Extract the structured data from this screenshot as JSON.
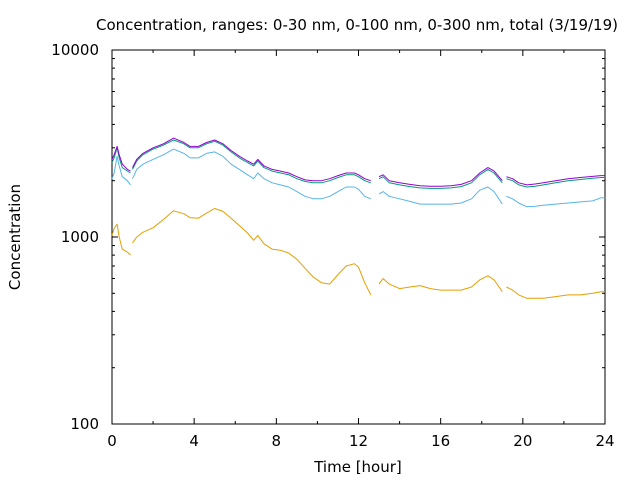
{
  "chart_data": {
    "type": "line",
    "title": "Concentration, ranges: 0-30 nm, 0-100 nm, 0-300 nm, total (3/19/19)",
    "xlabel": "Time [hour]",
    "ylabel": "Concentration",
    "xlim": [
      0,
      24
    ],
    "ylim": [
      100,
      10000
    ],
    "yscale": "log",
    "grid": false,
    "x_ticks": [
      0,
      4,
      8,
      12,
      16,
      20,
      24
    ],
    "x_tick_labels": [
      "0",
      "4",
      "8",
      "12",
      "16",
      "20",
      "24"
    ],
    "y_ticks": [
      100,
      1000,
      10000
    ],
    "y_tick_labels": [
      "100",
      "1000",
      "10000"
    ],
    "series": [
      {
        "color": "#e69f00",
        "x": [
          0,
          0.1,
          0.25,
          0.35,
          0.5,
          0.75,
          0.9,
          1.0,
          1.2,
          1.5,
          2.0,
          2.5,
          3.0,
          3.5,
          3.8,
          4.2,
          4.6,
          5.0,
          5.4,
          5.8,
          6.2,
          6.6,
          6.9,
          7.1,
          7.4,
          7.8,
          8.2,
          8.6,
          9.0,
          9.4,
          9.8,
          10.2,
          10.6,
          11.0,
          11.4,
          11.8,
          12.0,
          12.3,
          12.6,
          13.0,
          13.2,
          13.5,
          14.0,
          14.5,
          15.0,
          15.5,
          16.0,
          16.5,
          17.0,
          17.5,
          17.9,
          18.3,
          18.6,
          19.0,
          19.2,
          19.5,
          19.8,
          20.2,
          20.6,
          21.0,
          21.6,
          22.2,
          22.8,
          23.4,
          23.8,
          24.0
        ],
        "y": [
          1020,
          1110,
          1170,
          1000,
          860,
          830,
          800,
          930,
          1000,
          1060,
          1120,
          1240,
          1380,
          1330,
          1270,
          1260,
          1340,
          1420,
          1370,
          1260,
          1150,
          1050,
          960,
          1020,
          920,
          860,
          850,
          820,
          760,
          680,
          610,
          570,
          560,
          630,
          700,
          720,
          690,
          570,
          490,
          560,
          600,
          560,
          530,
          540,
          550,
          530,
          520,
          520,
          520,
          540,
          590,
          620,
          590,
          510,
          540,
          520,
          490,
          470,
          470,
          470,
          480,
          490,
          490,
          500,
          510,
          510
        ]
      },
      {
        "color": "#56b4e9",
        "x": [
          0,
          0.1,
          0.25,
          0.35,
          0.5,
          0.75,
          0.9,
          1.0,
          1.2,
          1.5,
          2.0,
          2.5,
          3.0,
          3.5,
          3.8,
          4.2,
          4.6,
          5.0,
          5.4,
          5.8,
          6.2,
          6.6,
          6.9,
          7.1,
          7.4,
          7.8,
          8.2,
          8.6,
          9.0,
          9.4,
          9.8,
          10.2,
          10.6,
          11.0,
          11.4,
          11.8,
          12.0,
          12.3,
          12.6,
          13.0,
          13.2,
          13.5,
          14.0,
          14.5,
          15.0,
          15.5,
          16.0,
          16.5,
          17.0,
          17.5,
          17.9,
          18.3,
          18.6,
          19.0,
          19.2,
          19.5,
          19.8,
          20.2,
          20.6,
          21.0,
          21.6,
          22.2,
          22.8,
          23.4,
          23.8,
          24.0
        ],
        "y": [
          2050,
          2200,
          2700,
          2400,
          2100,
          2000,
          1900,
          2050,
          2300,
          2450,
          2600,
          2750,
          2950,
          2800,
          2650,
          2650,
          2800,
          2850,
          2700,
          2450,
          2300,
          2150,
          2050,
          2200,
          2050,
          1950,
          1900,
          1850,
          1750,
          1650,
          1600,
          1600,
          1650,
          1750,
          1850,
          1850,
          1800,
          1650,
          1600,
          1700,
          1750,
          1650,
          1600,
          1550,
          1500,
          1500,
          1500,
          1500,
          1520,
          1600,
          1780,
          1850,
          1750,
          1500,
          1650,
          1600,
          1520,
          1450,
          1460,
          1480,
          1500,
          1520,
          1540,
          1560,
          1620,
          1620
        ]
      },
      {
        "color": "#009e73",
        "x": [
          0,
          0.1,
          0.25,
          0.35,
          0.5,
          0.75,
          0.9,
          1.0,
          1.2,
          1.5,
          2.0,
          2.5,
          3.0,
          3.5,
          3.8,
          4.2,
          4.6,
          5.0,
          5.4,
          5.8,
          6.2,
          6.6,
          6.9,
          7.1,
          7.4,
          7.8,
          8.2,
          8.6,
          9.0,
          9.4,
          9.8,
          10.2,
          10.6,
          11.0,
          11.4,
          11.8,
          12.0,
          12.3,
          12.6,
          13.0,
          13.2,
          13.5,
          14.0,
          14.5,
          15.0,
          15.5,
          16.0,
          16.5,
          17.0,
          17.5,
          17.9,
          18.3,
          18.6,
          19.0,
          19.2,
          19.5,
          19.8,
          20.2,
          20.6,
          21.0,
          21.6,
          22.2,
          22.8,
          23.4,
          23.8,
          24.0
        ],
        "y": [
          2500,
          2650,
          3000,
          2650,
          2350,
          2250,
          2200,
          2300,
          2550,
          2750,
          2950,
          3100,
          3300,
          3150,
          3000,
          3000,
          3150,
          3250,
          3100,
          2850,
          2650,
          2500,
          2400,
          2550,
          2350,
          2250,
          2200,
          2150,
          2050,
          1980,
          1950,
          1950,
          2000,
          2080,
          2150,
          2150,
          2100,
          2000,
          1950,
          2050,
          2100,
          1950,
          1900,
          1860,
          1830,
          1820,
          1820,
          1830,
          1860,
          1950,
          2150,
          2300,
          2200,
          1950,
          2050,
          2000,
          1900,
          1850,
          1870,
          1900,
          1950,
          2000,
          2030,
          2060,
          2080,
          2080
        ]
      },
      {
        "color": "#9400d3",
        "x": [
          0,
          0.1,
          0.25,
          0.35,
          0.5,
          0.75,
          0.9,
          1.0,
          1.2,
          1.5,
          2.0,
          2.5,
          3.0,
          3.5,
          3.8,
          4.2,
          4.6,
          5.0,
          5.4,
          5.8,
          6.2,
          6.6,
          6.9,
          7.1,
          7.4,
          7.8,
          8.2,
          8.6,
          9.0,
          9.4,
          9.8,
          10.2,
          10.6,
          11.0,
          11.4,
          11.8,
          12.0,
          12.3,
          12.6,
          13.0,
          13.2,
          13.5,
          14.0,
          14.5,
          15.0,
          15.5,
          16.0,
          16.5,
          17.0,
          17.5,
          17.9,
          18.3,
          18.6,
          19.0,
          19.2,
          19.5,
          19.8,
          20.2,
          20.6,
          21.0,
          21.6,
          22.2,
          22.8,
          23.4,
          23.8,
          24.0
        ],
        "y": [
          2600,
          2750,
          3050,
          2750,
          2450,
          2300,
          2250,
          2350,
          2600,
          2800,
          3000,
          3150,
          3380,
          3200,
          3050,
          3050,
          3200,
          3300,
          3150,
          2900,
          2700,
          2550,
          2450,
          2600,
          2400,
          2300,
          2250,
          2200,
          2100,
          2020,
          2000,
          2000,
          2050,
          2130,
          2200,
          2200,
          2150,
          2050,
          2000,
          2100,
          2150,
          2000,
          1950,
          1910,
          1880,
          1870,
          1870,
          1880,
          1910,
          2000,
          2200,
          2350,
          2250,
          2000,
          2100,
          2050,
          1950,
          1900,
          1920,
          1950,
          2000,
          2050,
          2080,
          2110,
          2130,
          2130
        ]
      }
    ]
  }
}
